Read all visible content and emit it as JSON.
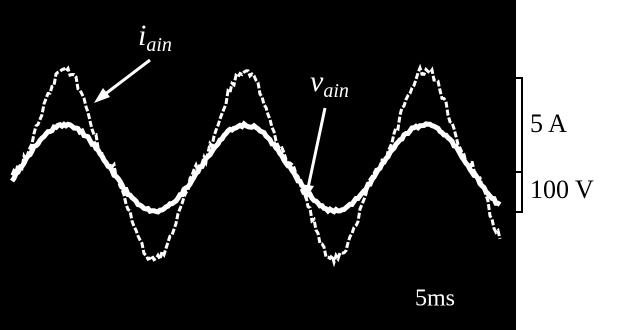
{
  "annotations": [
    {
      "symbol": "i",
      "subscript": "ain"
    },
    {
      "symbol": "v",
      "subscript": "ain"
    }
  ],
  "scale": [
    "5 A",
    "100 V"
  ],
  "timebase": "5ms"
}
